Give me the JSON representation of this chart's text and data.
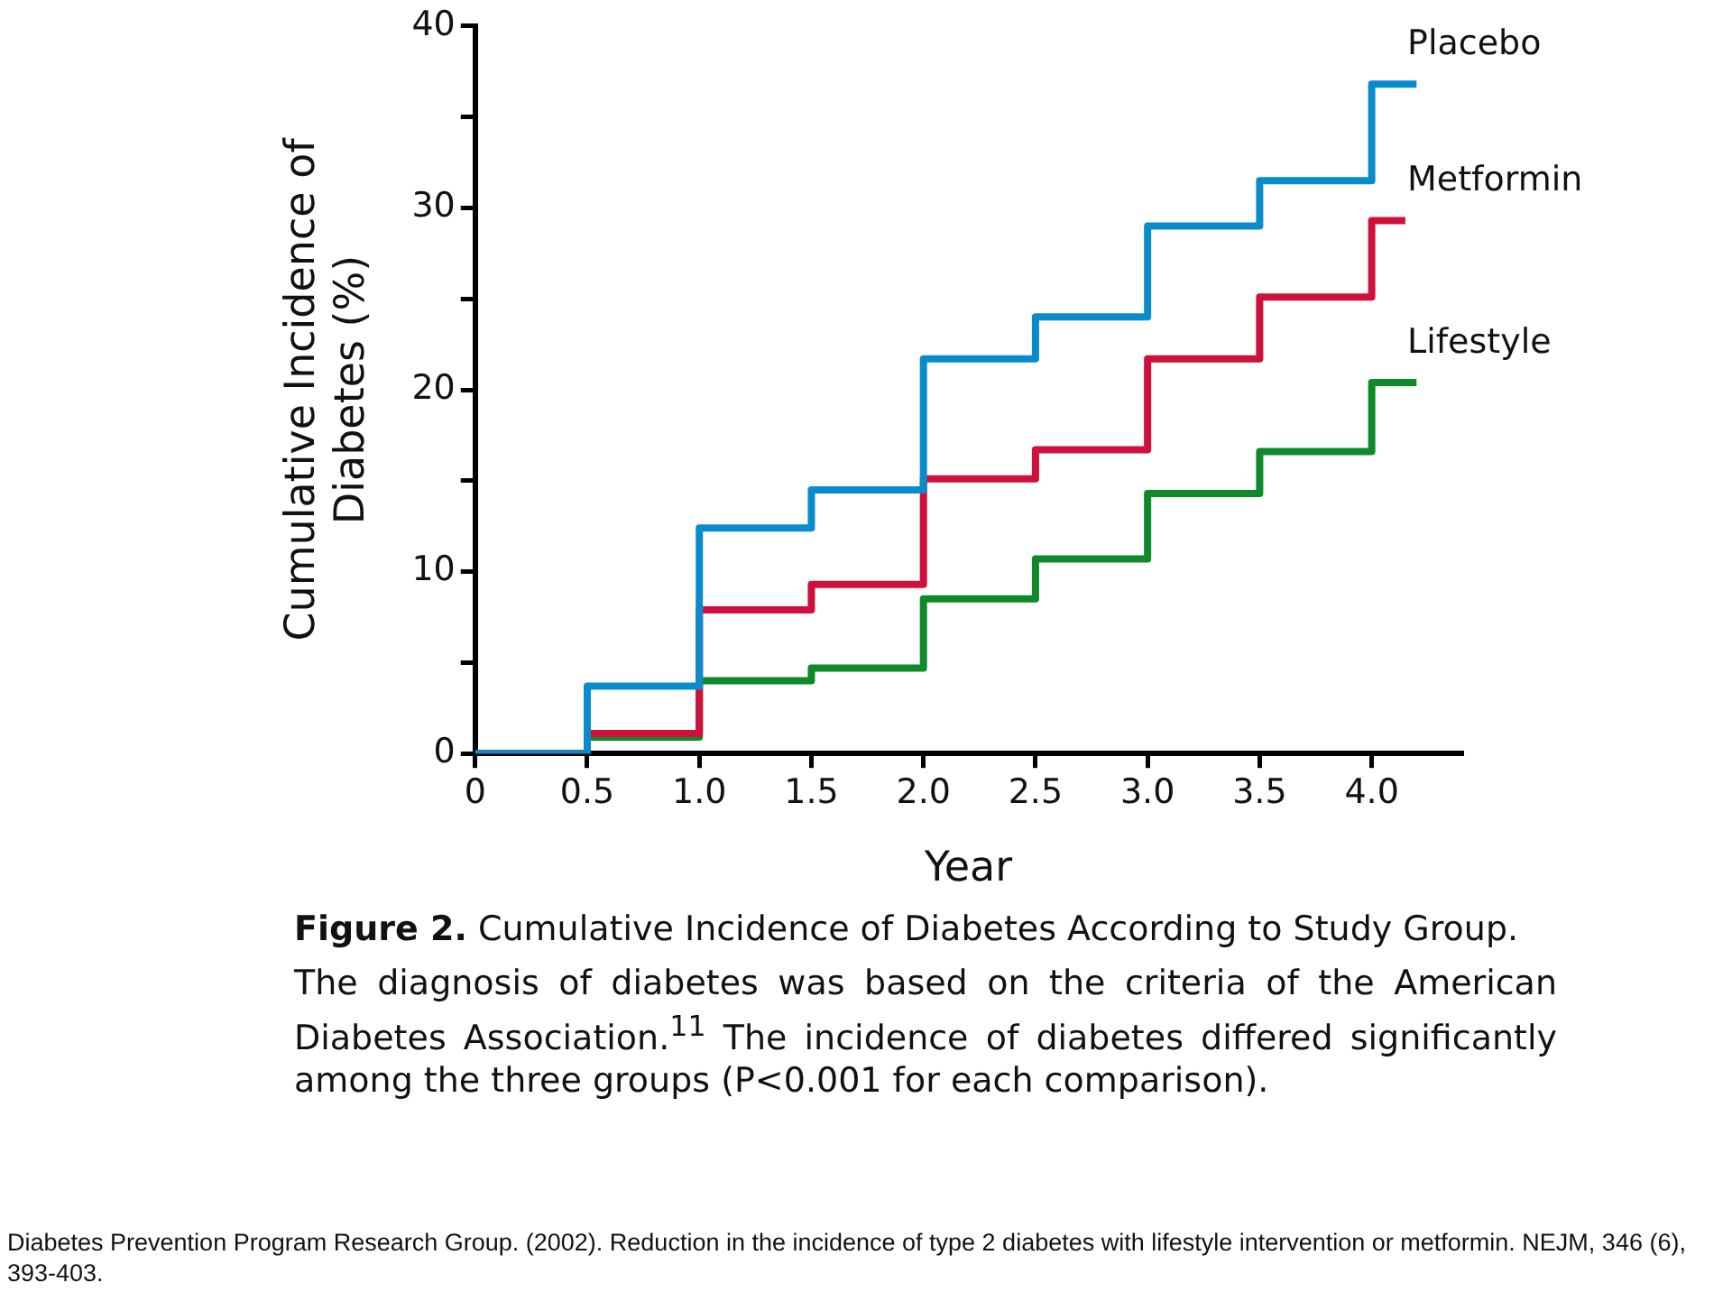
{
  "chart_data": {
    "type": "step",
    "xlabel": "Year",
    "ylabel": "Cumulative Incidence of Diabetes (%)",
    "title": "Figure 2. Cumulative Incidence of Diabetes According to Study Group.",
    "annotations": [
      "The diagnosis of diabetes was based on the criteria of the American Diabetes Association.$^{11}$ The incidence of diabetes differed significantly among the three groups (P<0.001 for each comparison).",
      "Diabetes Prevention Program Research Group. (2002). Reduction in the incidence of type 2 diabetes with lifestyle intervention or metformin. NEJM, 346 (6), 393-403."
    ],
    "series": [
      {
        "name": "Placebo",
        "color": "#0a8ccc",
        "x": [
          0,
          0.5,
          1,
          1.5,
          2,
          2.5,
          3,
          3.5,
          4,
          4.2
        ],
        "values": [
          0,
          3.7,
          12.4,
          14.5,
          21.7,
          24.0,
          29.0,
          31.5,
          36.8,
          36.8
        ]
      },
      {
        "name": "Metformin",
        "color": "#d0103a",
        "x": [
          0,
          0.5,
          1,
          1.5,
          2,
          2.5,
          3,
          3.5,
          4,
          4.15
        ],
        "values": [
          0,
          1.1,
          7.9,
          9.3,
          15.1,
          16.7,
          21.7,
          25.1,
          29.3,
          29.3
        ]
      },
      {
        "name": "Lifestyle",
        "color": "#0e8a2a",
        "x": [
          0,
          0.5,
          1,
          1.5,
          2,
          2.5,
          3,
          3.5,
          4,
          4.2
        ],
        "values": [
          0,
          0.9,
          4.0,
          4.7,
          8.5,
          10.7,
          14.3,
          16.6,
          20.4,
          20.4
        ]
      }
    ],
    "xlim": [
      0,
      4.4
    ],
    "ylim": [
      0,
      40
    ],
    "xticks": [
      0,
      0.5,
      {
        "value": 1,
        "label": "1.0"
      },
      1.5,
      {
        "value": 2,
        "label": "2.0"
      },
      2.5,
      {
        "value": 3,
        "label": "3.0"
      },
      3.5,
      {
        "value": 4,
        "label": "4.0"
      }
    ],
    "yticks": [
      0,
      {
        "value": 5,
        "label": null
      },
      10,
      {
        "value": 15,
        "label": null
      },
      20,
      {
        "value": 25,
        "label": null
      },
      30,
      {
        "value": 35,
        "label": null
      },
      40
    ],
    "grid": false,
    "legend": false,
    "marker": "none",
    "line_style": "solid"
  }
}
